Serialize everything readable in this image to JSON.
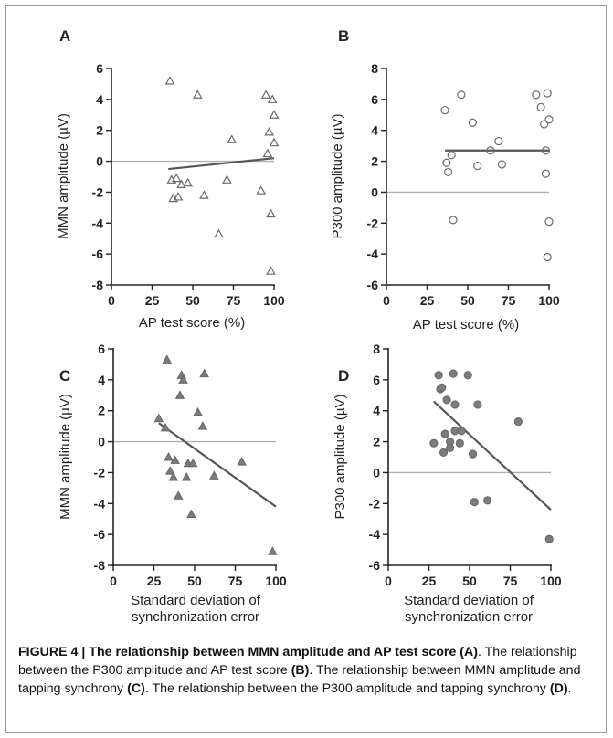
{
  "chart_data": [
    {
      "panel": "A",
      "type": "scatter",
      "marker": "triangle-open",
      "xlabel": "AP test score (%)",
      "ylabel": "MMN amplitude (µV)",
      "xlim": [
        0,
        100
      ],
      "ylim": [
        -8,
        6
      ],
      "xticks": [
        0,
        25,
        50,
        75,
        100
      ],
      "yticks": [
        -8,
        -6,
        -4,
        -2,
        0,
        2,
        4,
        6
      ],
      "zero_line": 0,
      "points": [
        [
          36,
          5.2
        ],
        [
          37,
          -1.2
        ],
        [
          38,
          -2.4
        ],
        [
          40,
          -1.1
        ],
        [
          41,
          -2.3
        ],
        [
          43,
          -1.5
        ],
        [
          47,
          -1.4
        ],
        [
          53,
          4.3
        ],
        [
          57,
          -2.2
        ],
        [
          66,
          -4.7
        ],
        [
          71,
          -1.2
        ],
        [
          74,
          1.4
        ],
        [
          92,
          -1.9
        ],
        [
          95,
          4.3
        ],
        [
          96,
          0.5
        ],
        [
          97,
          1.9
        ],
        [
          98,
          -3.4
        ],
        [
          98,
          -7.1
        ],
        [
          99,
          4.0
        ],
        [
          100,
          3.0
        ],
        [
          100,
          1.2
        ]
      ],
      "regression": {
        "x": [
          35,
          100
        ],
        "y": [
          -0.5,
          0.2
        ]
      }
    },
    {
      "panel": "B",
      "type": "scatter",
      "marker": "circle-open",
      "xlabel": "AP test score (%)",
      "ylabel": "P300 amplitude (µV)",
      "xlim": [
        0,
        100
      ],
      "ylim": [
        -6,
        8
      ],
      "xticks": [
        0,
        25,
        50,
        75,
        100
      ],
      "yticks": [
        -6,
        -4,
        -2,
        0,
        2,
        4,
        6,
        8
      ],
      "zero_line": 0,
      "points": [
        [
          36,
          5.3
        ],
        [
          37,
          1.9
        ],
        [
          38,
          1.3
        ],
        [
          40,
          2.4
        ],
        [
          41,
          -1.8
        ],
        [
          46,
          6.3
        ],
        [
          53,
          4.5
        ],
        [
          56,
          1.7
        ],
        [
          64,
          2.7
        ],
        [
          69,
          3.3
        ],
        [
          71,
          1.8
        ],
        [
          92,
          6.3
        ],
        [
          95,
          5.5
        ],
        [
          97,
          4.4
        ],
        [
          98,
          2.7
        ],
        [
          98,
          1.2
        ],
        [
          99,
          6.4
        ],
        [
          100,
          4.7
        ],
        [
          100,
          -1.9
        ],
        [
          99,
          -4.2
        ]
      ],
      "regression": {
        "x": [
          36,
          100
        ],
        "y": [
          2.7,
          2.7
        ]
      }
    },
    {
      "panel": "C",
      "type": "scatter",
      "marker": "triangle-filled",
      "xlabel": "Standard deviation of synchronization error",
      "ylabel": "MMN amplitude (µV)",
      "xlim": [
        0,
        100
      ],
      "ylim": [
        -8,
        6
      ],
      "xticks": [
        0,
        25,
        50,
        75,
        100
      ],
      "yticks": [
        -8,
        -6,
        -4,
        -2,
        0,
        2,
        4,
        6
      ],
      "zero_line": 0,
      "points": [
        [
          28,
          1.5
        ],
        [
          32,
          0.9
        ],
        [
          33,
          5.3
        ],
        [
          34,
          -1.0
        ],
        [
          35,
          -1.9
        ],
        [
          37,
          -2.3
        ],
        [
          38,
          -1.2
        ],
        [
          40,
          -3.5
        ],
        [
          41,
          3.0
        ],
        [
          42,
          4.3
        ],
        [
          43,
          4.0
        ],
        [
          45,
          -2.3
        ],
        [
          46,
          -1.4
        ],
        [
          48,
          -4.7
        ],
        [
          49,
          -1.4
        ],
        [
          52,
          1.9
        ],
        [
          55,
          1.0
        ],
        [
          56,
          4.4
        ],
        [
          62,
          -2.2
        ],
        [
          79,
          -1.3
        ],
        [
          98,
          -7.1
        ]
      ],
      "regression": {
        "x": [
          28,
          100
        ],
        "y": [
          1.2,
          -4.2
        ]
      }
    },
    {
      "panel": "D",
      "type": "scatter",
      "marker": "circle-filled",
      "xlabel": "Standard deviation of synchronization error",
      "ylabel": "P300 amplitude (µV)",
      "xlim": [
        0,
        100
      ],
      "ylim": [
        -6,
        8
      ],
      "xticks": [
        0,
        25,
        50,
        75,
        100
      ],
      "yticks": [
        -6,
        -4,
        -2,
        0,
        2,
        4,
        6,
        8
      ],
      "zero_line": 0,
      "points": [
        [
          28,
          1.9
        ],
        [
          31,
          6.3
        ],
        [
          32,
          5.4
        ],
        [
          33,
          5.5
        ],
        [
          34,
          1.3
        ],
        [
          35,
          2.5
        ],
        [
          36,
          4.7
        ],
        [
          38,
          2.0
        ],
        [
          38,
          1.6
        ],
        [
          40,
          6.4
        ],
        [
          41,
          4.4
        ],
        [
          41,
          2.7
        ],
        [
          44,
          1.9
        ],
        [
          45,
          2.7
        ],
        [
          49,
          6.3
        ],
        [
          52,
          1.2
        ],
        [
          53,
          -1.9
        ],
        [
          55,
          4.4
        ],
        [
          61,
          -1.8
        ],
        [
          80,
          3.3
        ],
        [
          99,
          -4.3
        ]
      ],
      "regression": {
        "x": [
          28,
          100
        ],
        "y": [
          4.6,
          -2.4
        ]
      }
    }
  ],
  "caption": {
    "title": "FIGURE 4 | The relationship between MMN amplitude and AP test score",
    "title_ref": "(A)",
    "s1": "The relationship between the P300 amplitude and AP test score",
    "s1_ref": "(B)",
    "s2": "The relationship between MMN amplitude and tapping synchrony",
    "s2_ref": "(C)",
    "s3": "The relationship between the P300 amplitude and tapping synchrony",
    "s3_ref": "(D)"
  },
  "colors": {
    "marker_stroke": "#6a6a6a",
    "marker_fill_filled": "#7c7c7c",
    "regression_line": "#555555",
    "zero_line": "#b0b0b0",
    "frame": "#9a9a9a"
  }
}
